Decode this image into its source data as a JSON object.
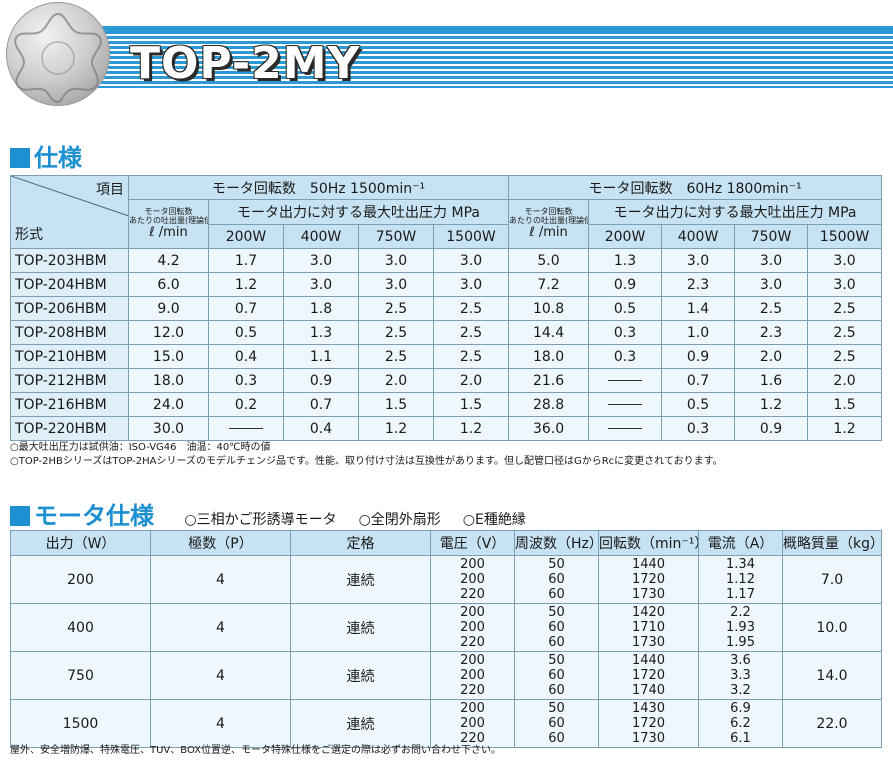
{
  "header": {
    "title": "TOP-2MY"
  },
  "spec": {
    "heading": "仕様",
    "col_item": "項目",
    "col_model": "形式",
    "group_50": "モータ回転数　50Hz 1500min⁻¹",
    "group_60": "モータ回転数　60Hz 1800min⁻¹",
    "flow_label_1": "モータ回転数",
    "flow_label_2": "あたりの吐出量(理論値)",
    "flow_unit": "ℓ /min",
    "pressure_label": "モータ出力に対する最大吐出圧力 MPa",
    "powers": [
      "200W",
      "400W",
      "750W",
      "1500W"
    ],
    "rows": [
      {
        "model": "TOP-203HBM",
        "f50": "4.2",
        "p50": [
          "1.7",
          "3.0",
          "3.0",
          "3.0"
        ],
        "f60": "5.0",
        "p60": [
          "1.3",
          "3.0",
          "3.0",
          "3.0"
        ]
      },
      {
        "model": "TOP-204HBM",
        "f50": "6.0",
        "p50": [
          "1.2",
          "3.0",
          "3.0",
          "3.0"
        ],
        "f60": "7.2",
        "p60": [
          "0.9",
          "2.3",
          "3.0",
          "3.0"
        ]
      },
      {
        "model": "TOP-206HBM",
        "f50": "9.0",
        "p50": [
          "0.7",
          "1.8",
          "2.5",
          "2.5"
        ],
        "f60": "10.8",
        "p60": [
          "0.5",
          "1.4",
          "2.5",
          "2.5"
        ]
      },
      {
        "model": "TOP-208HBM",
        "f50": "12.0",
        "p50": [
          "0.5",
          "1.3",
          "2.5",
          "2.5"
        ],
        "f60": "14.4",
        "p60": [
          "0.3",
          "1.0",
          "2.3",
          "2.5"
        ]
      },
      {
        "model": "TOP-210HBM",
        "f50": "15.0",
        "p50": [
          "0.4",
          "1.1",
          "2.5",
          "2.5"
        ],
        "f60": "18.0",
        "p60": [
          "0.3",
          "0.9",
          "2.0",
          "2.5"
        ]
      },
      {
        "model": "TOP-212HBM",
        "f50": "18.0",
        "p50": [
          "0.3",
          "0.9",
          "2.0",
          "2.0"
        ],
        "f60": "21.6",
        "p60": [
          "",
          "0.7",
          "1.6",
          "2.0"
        ]
      },
      {
        "model": "TOP-216HBM",
        "f50": "24.0",
        "p50": [
          "0.2",
          "0.7",
          "1.5",
          "1.5"
        ],
        "f60": "28.8",
        "p60": [
          "",
          "0.5",
          "1.2",
          "1.5"
        ]
      },
      {
        "model": "TOP-220HBM",
        "f50": "30.0",
        "p50": [
          "",
          "0.4",
          "1.2",
          "1.2"
        ],
        "f60": "36.0",
        "p60": [
          "",
          "0.3",
          "0.9",
          "1.2"
        ]
      }
    ],
    "note_1": "○最大吐出圧力は試供油：ISO-VG46　油温：40℃時の値",
    "note_2": "○TOP-2HBシリーズはTOP-2HAシリーズのモデルチェンジ品です。性能、取り付け寸法は互換性があります。但し配管口径はGからRcに変更されております。"
  },
  "motor": {
    "heading": "モータ仕様",
    "sub_1": "○三相かご形誘導モータ",
    "sub_2": "○全閉外扇形",
    "sub_3": "○E種絶縁",
    "headers": [
      "出力（W）",
      "極数（P）",
      "定格",
      "電圧（V）",
      "周波数（Hz）",
      "回転数（min⁻¹）",
      "電流（A）",
      "概略質量（kg）"
    ],
    "rows": [
      {
        "output": "200",
        "poles": "4",
        "rating": "連続",
        "voltage": [
          "200",
          "200",
          "220"
        ],
        "freq": [
          "50",
          "60",
          "60"
        ],
        "rpm": [
          "1440",
          "1720",
          "1730"
        ],
        "current": [
          "1.34",
          "1.12",
          "1.17"
        ],
        "mass": "7.0"
      },
      {
        "output": "400",
        "poles": "4",
        "rating": "連続",
        "voltage": [
          "200",
          "200",
          "220"
        ],
        "freq": [
          "50",
          "60",
          "60"
        ],
        "rpm": [
          "1420",
          "1710",
          "1730"
        ],
        "current": [
          "2.2",
          "1.93",
          "1.95"
        ],
        "mass": "10.0"
      },
      {
        "output": "750",
        "poles": "4",
        "rating": "連続",
        "voltage": [
          "200",
          "200",
          "220"
        ],
        "freq": [
          "50",
          "60",
          "60"
        ],
        "rpm": [
          "1440",
          "1720",
          "1740"
        ],
        "current": [
          "3.6",
          "3.3",
          "3.2"
        ],
        "mass": "14.0"
      },
      {
        "output": "1500",
        "poles": "4",
        "rating": "連続",
        "voltage": [
          "200",
          "200",
          "220"
        ],
        "freq": [
          "50",
          "60",
          "60"
        ],
        "rpm": [
          "1430",
          "1720",
          "1730"
        ],
        "current": [
          "6.9",
          "6.2",
          "6.1"
        ],
        "mass": "22.0"
      }
    ],
    "footer": "屋外、安全増防爆、特殊電圧、TUV、BOX位置逆、モータ特殊仕様をご選定の際は必ずお問い合わせ下さい。"
  }
}
